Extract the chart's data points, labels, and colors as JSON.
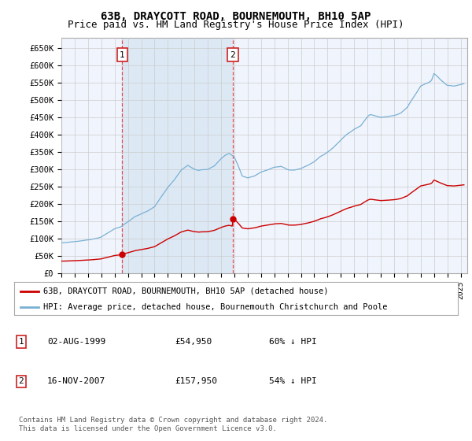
{
  "title": "63B, DRAYCOTT ROAD, BOURNEMOUTH, BH10 5AP",
  "subtitle": "Price paid vs. HM Land Registry's House Price Index (HPI)",
  "ylabel_ticks": [
    "£0",
    "£50K",
    "£100K",
    "£150K",
    "£200K",
    "£250K",
    "£300K",
    "£350K",
    "£400K",
    "£450K",
    "£500K",
    "£550K",
    "£600K",
    "£650K"
  ],
  "ylim": [
    0,
    680000
  ],
  "xlim_start": 1995.0,
  "xlim_end": 2025.5,
  "sale1_date": 1999.58,
  "sale1_price": 54950,
  "sale2_date": 2007.88,
  "sale2_price": 157950,
  "sale1_label": "1",
  "sale2_label": "2",
  "red_line_color": "#cc0000",
  "blue_line_color": "#7ab0d4",
  "shade_color": "#dce9f5",
  "marker_color": "#cc0000",
  "grid_color": "#cccccc",
  "background_color": "#f0f4fc",
  "legend_entries": [
    "63B, DRAYCOTT ROAD, BOURNEMOUTH, BH10 5AP (detached house)",
    "HPI: Average price, detached house, Bournemouth Christchurch and Poole"
  ],
  "table_entries": [
    {
      "num": "1",
      "date": "02-AUG-1999",
      "price": "£54,950",
      "pct": "60% ↓ HPI"
    },
    {
      "num": "2",
      "date": "16-NOV-2007",
      "price": "£157,950",
      "pct": "54% ↓ HPI"
    }
  ],
  "footer": "Contains HM Land Registry data © Crown copyright and database right 2024.\nThis data is licensed under the Open Government Licence v3.0.",
  "title_fontsize": 10,
  "subtitle_fontsize": 9
}
